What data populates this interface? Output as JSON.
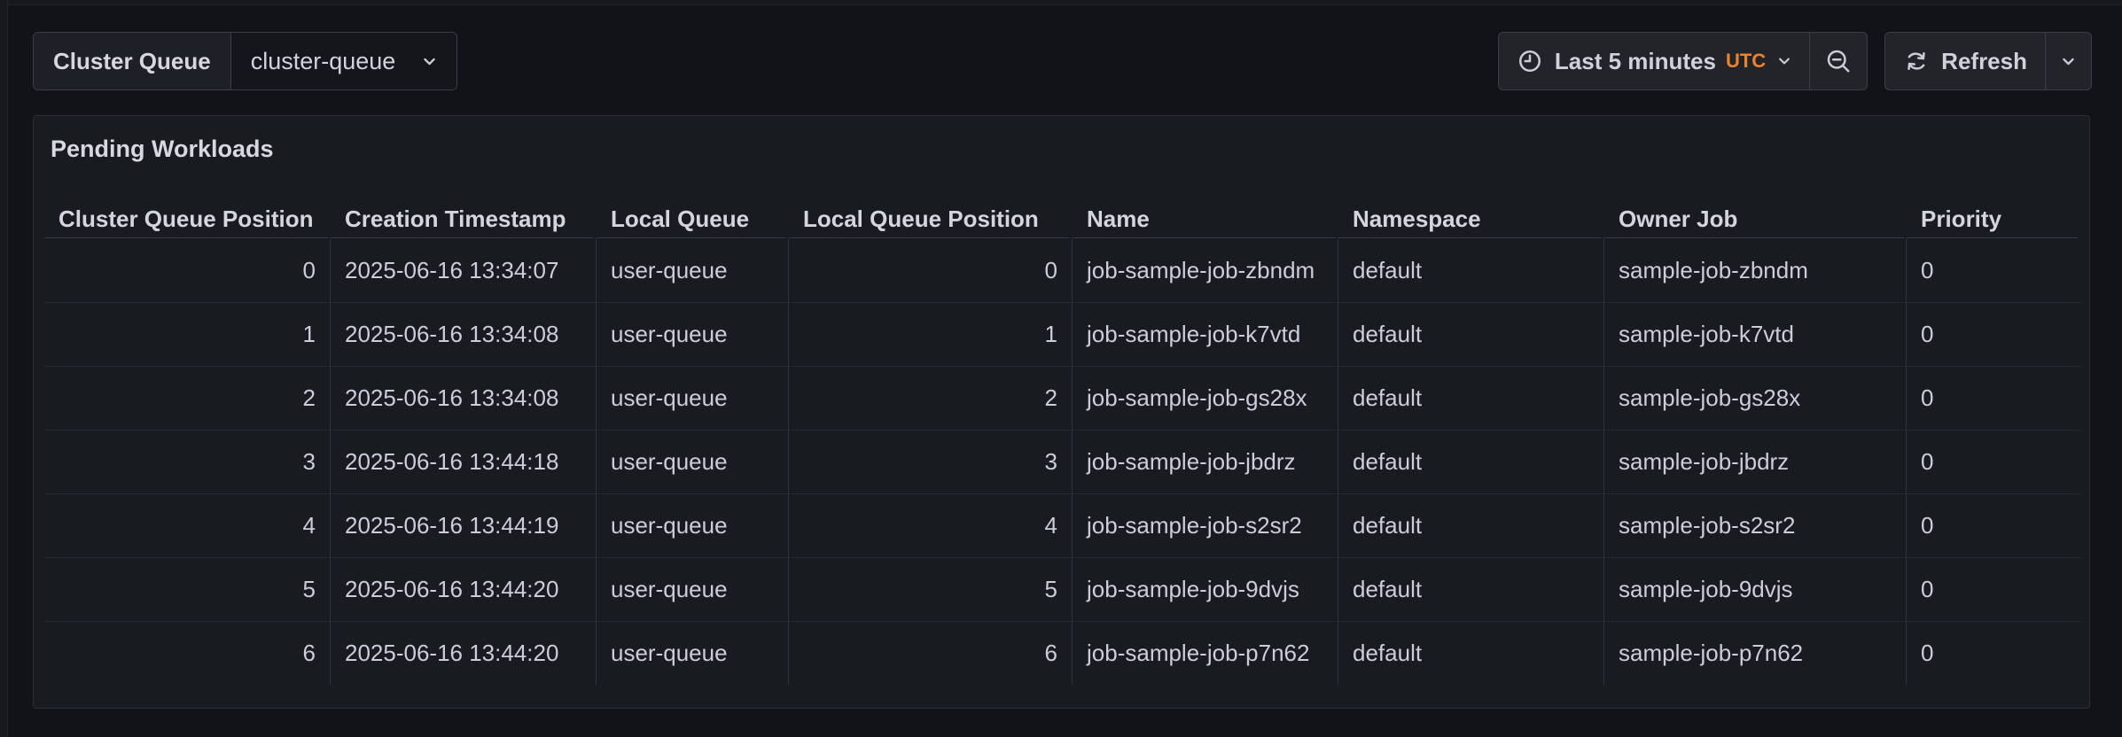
{
  "variable_picker": {
    "label": "Cluster Queue",
    "value": "cluster-queue"
  },
  "time_controls": {
    "range_label": "Last 5 minutes",
    "timezone": "UTC",
    "refresh_label": "Refresh"
  },
  "icons": {
    "time_picker": "clock-icon",
    "time_picker_caret": "chevron-down-icon",
    "zoom_out": "magnifier-minus-icon",
    "refresh": "sync-icon",
    "refresh_caret": "chevron-down-icon",
    "variable_caret": "chevron-down-icon"
  },
  "panel": {
    "title": "Pending Workloads",
    "table": {
      "columns": [
        {
          "label": "Cluster Queue Position",
          "align": "right"
        },
        {
          "label": "Creation Timestamp",
          "align": "left"
        },
        {
          "label": "Local Queue",
          "align": "left"
        },
        {
          "label": "Local Queue Position",
          "align": "right"
        },
        {
          "label": "Name",
          "align": "left"
        },
        {
          "label": "Namespace",
          "align": "left"
        },
        {
          "label": "Owner Job",
          "align": "left"
        },
        {
          "label": "Priority",
          "align": "left"
        }
      ],
      "rows": [
        [
          "0",
          "2025-06-16 13:34:07",
          "user-queue",
          "0",
          "job-sample-job-zbndm",
          "default",
          "sample-job-zbndm",
          "0"
        ],
        [
          "1",
          "2025-06-16 13:34:08",
          "user-queue",
          "1",
          "job-sample-job-k7vtd",
          "default",
          "sample-job-k7vtd",
          "0"
        ],
        [
          "2",
          "2025-06-16 13:34:08",
          "user-queue",
          "2",
          "job-sample-job-gs28x",
          "default",
          "sample-job-gs28x",
          "0"
        ],
        [
          "3",
          "2025-06-16 13:44:18",
          "user-queue",
          "3",
          "job-sample-job-jbdrz",
          "default",
          "sample-job-jbdrz",
          "0"
        ],
        [
          "4",
          "2025-06-16 13:44:19",
          "user-queue",
          "4",
          "job-sample-job-s2sr2",
          "default",
          "sample-job-s2sr2",
          "0"
        ],
        [
          "5",
          "2025-06-16 13:44:20",
          "user-queue",
          "5",
          "job-sample-job-9dvjs",
          "default",
          "sample-job-9dvjs",
          "0"
        ],
        [
          "6",
          "2025-06-16 13:44:20",
          "user-queue",
          "6",
          "job-sample-job-p7n62",
          "default",
          "sample-job-p7n62",
          "0"
        ]
      ]
    }
  },
  "colors": {
    "page_background": "#121318",
    "panel_background": "#181b20",
    "control_background": "#22242a",
    "border": "#3b3e45",
    "text": "#ccccdc",
    "heading_text": "#d8d9e0",
    "accent_orange": "#e8842e"
  }
}
